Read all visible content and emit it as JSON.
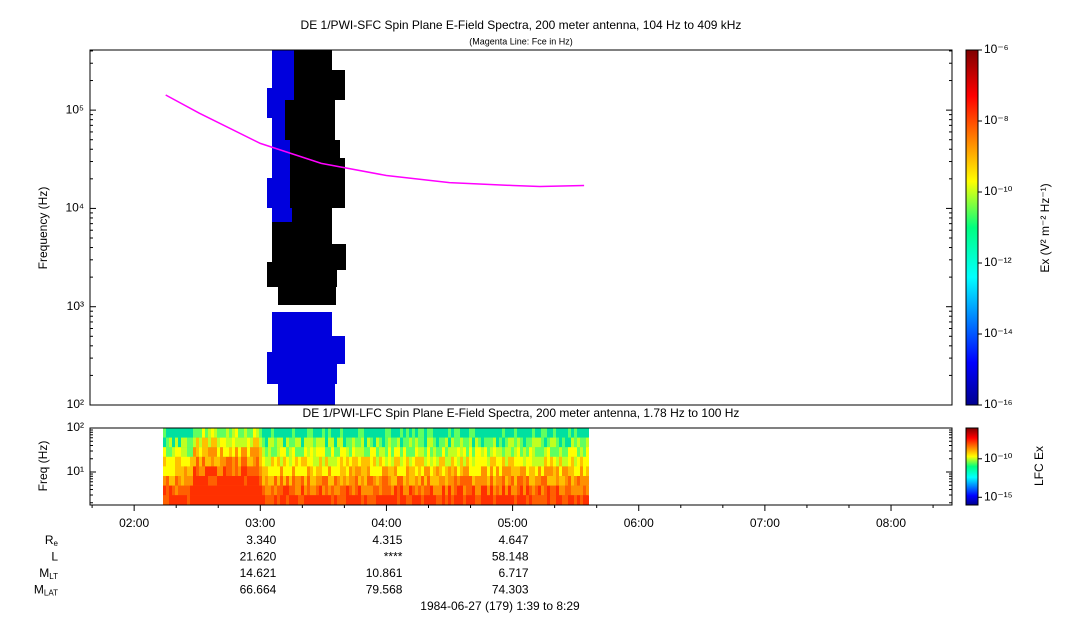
{
  "chart_data": [
    {
      "type": "spectrogram",
      "title": "DE 1/PWI-SFC  Spin Plane E-Field Spectra, 200 meter antenna, 104 Hz to 409 kHz",
      "subtitle": "(Magenta Line: Fce in Hz)",
      "y_label": "Frequency (Hz)",
      "log_y": true,
      "xlim": [
        "01:39",
        "08:29"
      ],
      "ylim": [
        100,
        409000
      ],
      "yticks": [
        {
          "value": 100,
          "label": "10²"
        },
        {
          "value": 1000,
          "label": "10³"
        },
        {
          "value": 10000,
          "label": "10⁴"
        },
        {
          "value": 100000,
          "label": "10⁵"
        }
      ],
      "colorbar_label": "Ex (V² m⁻² Hz⁻¹)",
      "clim": [
        1e-16,
        1e-06
      ],
      "cticks": [
        {
          "value": 1e-06,
          "label": "10⁻⁶"
        },
        {
          "value": 1e-08,
          "label": "10⁻⁸"
        },
        {
          "value": 1e-10,
          "label": "10⁻¹⁰"
        },
        {
          "value": 1e-12,
          "label": "10⁻¹²"
        },
        {
          "value": 1e-14,
          "label": "10⁻¹⁴"
        },
        {
          "value": 1e-16,
          "label": "10⁻¹⁶"
        }
      ],
      "series": [
        {
          "color": "#ff00ff",
          "x": [
            "02:15",
            "02:31",
            "03:00",
            "03:29",
            "04:00",
            "04:30",
            "05:00",
            "05:13",
            "05:34"
          ],
          "values": [
            142500,
            93100,
            45900,
            28700,
            21600,
            18300,
            17100,
            16700,
            17100
          ]
        }
      ]
    },
    {
      "type": "spectrogram",
      "title": "DE 1/PWI-LFC  Spin Plane E-Field Spectra, 200 meter antenna, 1.78 Hz to 100 Hz",
      "y_label": "Freq (Hz)",
      "log_y": true,
      "xlim": [
        "01:39",
        "08:29"
      ],
      "ylim": [
        1.78,
        100
      ],
      "yticks": [
        {
          "value": 10,
          "label": "10¹"
        },
        {
          "value": 100,
          "label": "10²"
        }
      ],
      "xticks": [
        "02:00",
        "03:00",
        "04:00",
        "05:00",
        "06:00",
        "07:00",
        "08:00"
      ],
      "colorbar_label": "LFC Ex",
      "clim": [
        1e-16,
        1e-06
      ],
      "cticks": [
        {
          "value": 1e-10,
          "label": "10⁻¹⁰"
        },
        {
          "value": 1e-15,
          "label": "10⁻¹⁵"
        }
      ]
    }
  ],
  "ephemeris": {
    "rows": [
      {
        "label": "R",
        "sub": "e",
        "values": [
          "3.340",
          "4.315",
          "4.647"
        ]
      },
      {
        "label": "L",
        "values": [
          "21.620",
          "****",
          "58.148"
        ]
      },
      {
        "label": "M",
        "sub": "LT",
        "values": [
          "14.621",
          "10.861",
          "6.717"
        ]
      },
      {
        "label": "M",
        "sub": "LAT",
        "values": [
          "66.664",
          "79.568",
          "74.303"
        ]
      }
    ],
    "date": "1984-06-27 (179) 1:39 to 8:29"
  }
}
